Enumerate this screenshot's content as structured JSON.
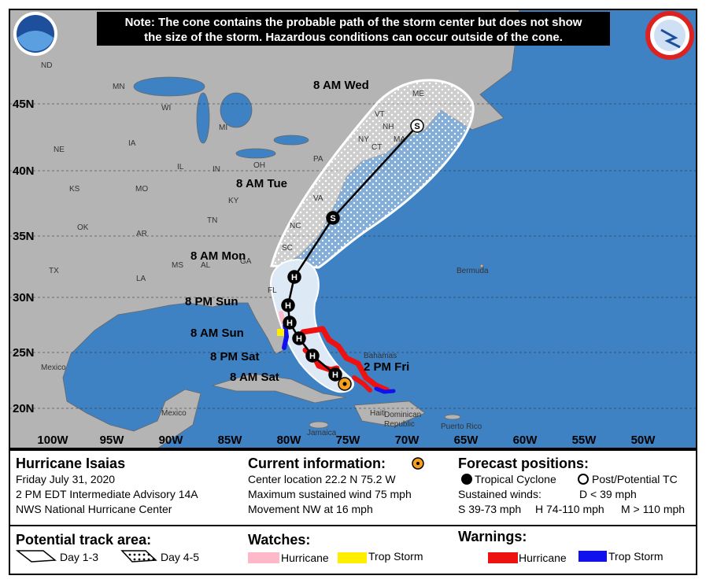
{
  "note": [
    "Note: The cone contains the probable path of the storm center but does not show",
    "the size of the storm. Hazardous conditions can occur outside of the cone."
  ],
  "lat_labels": [
    "45N",
    "40N",
    "35N",
    "30N",
    "25N",
    "20N"
  ],
  "lon_labels": [
    "100W",
    "95W",
    "90W",
    "85W",
    "80W",
    "75W",
    "70W",
    "65W",
    "60W",
    "55W",
    "50W"
  ],
  "track": [
    {
      "label": "2 PM Fri",
      "symbol": null
    },
    {
      "label": "8 AM Sat",
      "symbol": "H"
    },
    {
      "label": "8 PM Sat",
      "symbol": "H"
    },
    {
      "label": null,
      "symbol": "H"
    },
    {
      "label": "8 AM Sun",
      "symbol": "H"
    },
    {
      "label": "8 PM Sun",
      "symbol": "H"
    },
    {
      "label": "8 AM Mon",
      "symbol": "H"
    },
    {
      "label": "8 AM Tue",
      "symbol": "S"
    },
    {
      "label": "8 AM Wed",
      "symbol": "S"
    }
  ],
  "places": [
    "ND",
    "MN",
    "WI",
    "MI",
    "NE",
    "IA",
    "IL",
    "IN",
    "OH",
    "KS",
    "MO",
    "KY",
    "OK",
    "AR",
    "TN",
    "TX",
    "LA",
    "MS",
    "AL",
    "GA",
    "SC",
    "NC",
    "VA",
    "PA",
    "NY",
    "VT",
    "NH",
    "ME",
    "MA",
    "CT",
    "FL",
    "Mexico",
    "Bermuda",
    "Bahamas",
    "Mexico",
    "Jamaica",
    "Haiti",
    "Dominican",
    "Republic",
    "Puerto Rico"
  ],
  "legend": {
    "storm": {
      "title": "Hurricane Isaias",
      "lines": [
        "Friday July 31, 2020",
        "2 PM EDT Intermediate Advisory 14A",
        "NWS National Hurricane Center"
      ]
    },
    "current": {
      "title": "Current information:",
      "lines": [
        "Center location 22.2 N 75.2 W",
        "Maximum sustained wind 75 mph",
        "Movement NW at 16 mph"
      ]
    },
    "forecast": {
      "title": "Forecast positions:",
      "tropical": "Tropical Cyclone",
      "post": "Post/Potential TC",
      "winds": "Sustained winds:",
      "d": "D < 39 mph",
      "s": "S 39-73 mph",
      "h": "H 74-110 mph",
      "m": "M > 110 mph"
    },
    "track_area": {
      "title": "Potential track area:",
      "day13": "Day 1-3",
      "day45": "Day 4-5"
    },
    "watches": {
      "title": "Watches:",
      "hurricane": "Hurricane",
      "trop_storm": "Trop Storm"
    },
    "warnings": {
      "title": "Warnings:",
      "hurricane": "Hurricane",
      "trop_storm": "Trop Storm"
    }
  }
}
